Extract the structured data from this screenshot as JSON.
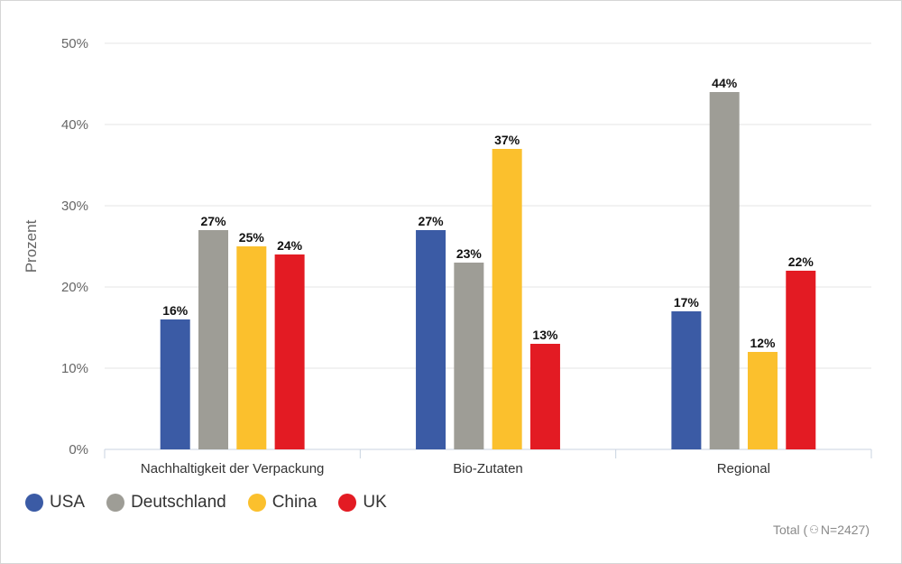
{
  "chart_data": {
    "type": "bar",
    "ylabel": "Prozent",
    "ylim": [
      0,
      50
    ],
    "yticks": [
      "0%",
      "10%",
      "20%",
      "30%",
      "40%",
      "50%"
    ],
    "categories": [
      "Nachhaltigkeit der Verpackung",
      "Bio-Zutaten",
      "Regional"
    ],
    "series": [
      {
        "name": "USA",
        "color": "#3b5ba5",
        "values": [
          16,
          27,
          17
        ],
        "labels": [
          "16%",
          "27%",
          "17%"
        ]
      },
      {
        "name": "Deutschland",
        "color": "#9e9d96",
        "values": [
          27,
          23,
          44
        ],
        "labels": [
          "27%",
          "23%",
          "44%"
        ]
      },
      {
        "name": "China",
        "color": "#fbc02d",
        "values": [
          25,
          37,
          12
        ],
        "labels": [
          "25%",
          "37%",
          "12%"
        ]
      },
      {
        "name": "UK",
        "color": "#e31b23",
        "values": [
          24,
          13,
          22
        ],
        "labels": [
          "24%",
          "13%",
          "22%"
        ]
      }
    ],
    "grid": true,
    "legend_position": "bottom-left"
  },
  "footer": {
    "prefix": "Total (",
    "icon": "people-icon",
    "suffix": " N=2427)"
  }
}
